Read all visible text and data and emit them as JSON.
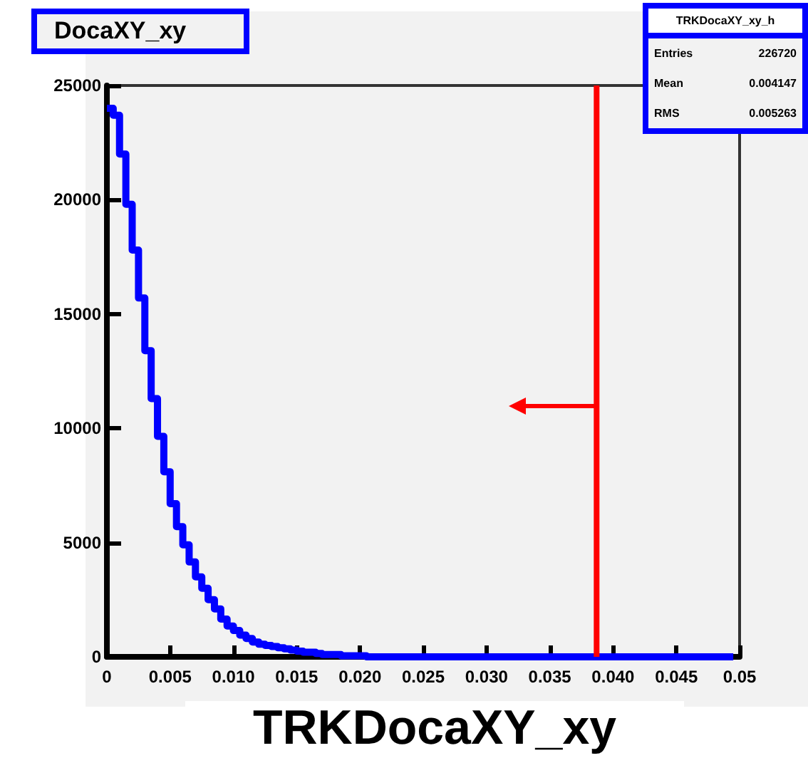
{
  "chart_data": {
    "type": "step",
    "title": "DocaXY_xy",
    "xlabel": "TRKDocaXY_xy",
    "annotations": [
      "TRKDocaXY_xy_h",
      "Entries",
      "226720",
      "Mean",
      "0.004147",
      "RMS",
      "0.005263"
    ],
    "x": [
      0,
      0.0005,
      0.001,
      0.0015,
      0.002,
      0.0025,
      0.003,
      0.0035,
      0.004,
      0.0045,
      0.005,
      0.0055,
      0.006,
      0.0065,
      0.007,
      0.0075,
      0.008,
      0.0085,
      0.009,
      0.0095,
      0.01,
      0.0105,
      0.011,
      0.0115,
      0.012,
      0.0125,
      0.013,
      0.0135,
      0.014,
      0.0145,
      0.015,
      0.0155,
      0.016,
      0.0165,
      0.017,
      0.0175,
      0.018,
      0.0185,
      0.019,
      0.0195,
      0.02,
      0.0205,
      0.021,
      0.0215,
      0.022,
      0.0225,
      0.023,
      0.0235,
      0.024,
      0.0245,
      0.025,
      0.0255,
      0.026,
      0.0265,
      0.027,
      0.0275,
      0.028,
      0.0285,
      0.029,
      0.0295,
      0.03,
      0.0305,
      0.031,
      0.0315,
      0.032,
      0.0325,
      0.033,
      0.0335,
      0.034,
      0.0345,
      0.035,
      0.0355,
      0.036,
      0.0365,
      0.037,
      0.0375,
      0.038,
      0.0385,
      0.039,
      0.0395,
      0.04,
      0.0405,
      0.041,
      0.0415,
      0.042,
      0.0425,
      0.043,
      0.0435,
      0.044,
      0.0445,
      0.045,
      0.0455,
      0.046,
      0.0465,
      0.047,
      0.0475,
      0.048,
      0.0485,
      0.049,
      0.0495
    ],
    "values": [
      24000,
      23700,
      22000,
      19800,
      17800,
      15700,
      13400,
      11300,
      9650,
      8100,
      6700,
      5700,
      4900,
      4150,
      3500,
      3000,
      2500,
      2100,
      1650,
      1350,
      1150,
      950,
      800,
      650,
      550,
      500,
      450,
      400,
      350,
      300,
      250,
      200,
      200,
      150,
      100,
      100,
      100,
      50,
      50,
      50,
      50,
      0,
      0,
      0,
      0,
      0,
      0,
      0,
      0,
      0,
      0,
      0,
      0,
      0,
      0,
      0,
      0,
      0,
      0,
      0,
      0,
      0,
      0,
      0,
      0,
      0,
      0,
      0,
      0,
      0,
      0,
      0,
      0,
      0,
      0,
      0,
      0,
      0,
      0,
      0,
      0,
      0,
      0,
      0,
      0,
      0,
      0,
      0,
      0,
      0,
      0,
      0,
      0,
      0,
      0,
      0,
      0,
      0,
      0,
      0
    ],
    "color": "#0000ff",
    "xlim": [
      0,
      0.05
    ],
    "xticks": [
      0,
      {
        "value": 0.005,
        "label": "0.005"
      },
      {
        "value": 0.01,
        "label": "0.010"
      },
      {
        "value": 0.015,
        "label": "0.015"
      },
      {
        "value": 0.02,
        "label": "0.020"
      },
      {
        "value": 0.025,
        "label": "0.025"
      },
      {
        "value": 0.03,
        "label": "0.030"
      },
      {
        "value": 0.035,
        "label": "0.035"
      },
      {
        "value": 0.04,
        "label": "0.040"
      },
      {
        "value": 0.045,
        "label": "0.045"
      },
      0.05
    ],
    "ylim": [
      0,
      25000
    ],
    "yticks": [
      0,
      5000,
      10000,
      15000,
      20000,
      25000
    ],
    "ref_lines": [
      {
        "axis": "x",
        "value": 0.0387,
        "color": "#ff0000"
      }
    ],
    "grid": false
  }
}
